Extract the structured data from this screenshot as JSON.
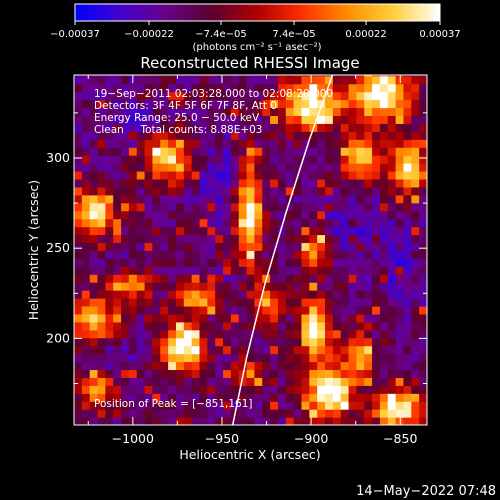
{
  "chart_data": {
    "type": "heatmap",
    "title": "Reconstructed RHESSI Image",
    "xlabel": "Heliocentric X (arcsec)",
    "ylabel": "Heliocentric Y (arcsec)",
    "xlim": [
      -1033,
      -835
    ],
    "ylim": [
      152,
      346
    ],
    "x_ticks": [
      {
        "value": -1000,
        "label": "−1000"
      },
      {
        "value": -950,
        "label": "−950"
      },
      {
        "value": -900,
        "label": "−900"
      },
      {
        "value": -850,
        "label": "−850"
      }
    ],
    "y_ticks": [
      {
        "value": 200,
        "label": "200"
      },
      {
        "value": 250,
        "label": "250"
      },
      {
        "value": 300,
        "label": "300"
      }
    ],
    "annotations": [
      "19−Sep−2011 02:03:28.000 to 02:08:20.000",
      "Detectors: 3F 4F 5F 6F 7F 8F, Att 0",
      "Energy Range: 25.0 − 50.0 keV",
      "Clean     Total counts: 8.88E+03"
    ],
    "peak_label": "Position of Peak = [−851,161]",
    "peak": [
      -851,
      161
    ],
    "colorbar": {
      "min": -0.00037,
      "max": 0.00037,
      "ticks": [
        {
          "value": -0.00037,
          "label": "−0.00037"
        },
        {
          "value": -0.00022,
          "label": "−0.00022"
        },
        {
          "value": -7.4e-05,
          "label": "−7.4e−05"
        },
        {
          "value": 7.4e-05,
          "label": "7.4e−05"
        },
        {
          "value": 0.00022,
          "label": "0.00022"
        },
        {
          "value": 0.00037,
          "label": "0.00037"
        }
      ],
      "units": "(photons cm⁻² s⁻¹ asec⁻²)",
      "stops": [
        "#0000ff",
        "#4400cc",
        "#6a0088",
        "#5a0030",
        "#b00000",
        "#ff3000",
        "#ff9000",
        "#ffd040",
        "#ffffff"
      ]
    },
    "limb": [
      [
        -944,
        152
      ],
      [
        -936,
        190
      ],
      [
        -926,
        230
      ],
      [
        -914,
        270
      ],
      [
        -901,
        310
      ],
      [
        -888,
        346
      ]
    ],
    "bright_regions": [
      {
        "x": -980,
        "y": 300,
        "sx": 10,
        "sy": 10,
        "a": 0.8
      },
      {
        "x": -1022,
        "y": 270,
        "sx": 8,
        "sy": 8,
        "a": 0.9
      },
      {
        "x": -1022,
        "y": 210,
        "sx": 10,
        "sy": 9,
        "a": 0.7
      },
      {
        "x": -1020,
        "y": 172,
        "sx": 7,
        "sy": 7,
        "a": 0.65
      },
      {
        "x": -1000,
        "y": 230,
        "sx": 8,
        "sy": 6,
        "a": 0.55
      },
      {
        "x": -972,
        "y": 195,
        "sx": 8,
        "sy": 9,
        "a": 1.0
      },
      {
        "x": -962,
        "y": 224,
        "sx": 9,
        "sy": 6,
        "a": 0.7
      },
      {
        "x": -935,
        "y": 270,
        "sx": 5,
        "sy": 20,
        "a": 0.95
      },
      {
        "x": -925,
        "y": 220,
        "sx": 6,
        "sy": 8,
        "a": 0.6
      },
      {
        "x": -900,
        "y": 330,
        "sx": 12,
        "sy": 10,
        "a": 0.95
      },
      {
        "x": -860,
        "y": 335,
        "sx": 12,
        "sy": 10,
        "a": 1.0
      },
      {
        "x": -872,
        "y": 300,
        "sx": 8,
        "sy": 9,
        "a": 0.75
      },
      {
        "x": -845,
        "y": 295,
        "sx": 7,
        "sy": 10,
        "a": 0.85
      },
      {
        "x": -897,
        "y": 250,
        "sx": 6,
        "sy": 8,
        "a": 0.6
      },
      {
        "x": -898,
        "y": 205,
        "sx": 6,
        "sy": 12,
        "a": 0.95
      },
      {
        "x": -890,
        "y": 170,
        "sx": 9,
        "sy": 10,
        "a": 1.0
      },
      {
        "x": -851,
        "y": 161,
        "sx": 9,
        "sy": 7,
        "a": 1.0
      },
      {
        "x": -873,
        "y": 190,
        "sx": 6,
        "sy": 9,
        "a": 0.7
      },
      {
        "x": -935,
        "y": 180,
        "sx": 6,
        "sy": 6,
        "a": 0.55
      }
    ],
    "dark_regions": [
      {
        "x": -1005,
        "y": 320,
        "sx": 12,
        "sy": 10,
        "a": 0.8
      },
      {
        "x": -955,
        "y": 290,
        "sx": 12,
        "sy": 14,
        "a": 0.9
      },
      {
        "x": -880,
        "y": 265,
        "sx": 14,
        "sy": 12,
        "a": 0.8
      },
      {
        "x": -850,
        "y": 240,
        "sx": 10,
        "sy": 14,
        "a": 0.7
      },
      {
        "x": -1010,
        "y": 190,
        "sx": 10,
        "sy": 8,
        "a": 0.6
      },
      {
        "x": -955,
        "y": 230,
        "sx": 10,
        "sy": 8,
        "a": 0.6
      }
    ]
  },
  "footer_timestamp": "14−May−2022 07:48"
}
